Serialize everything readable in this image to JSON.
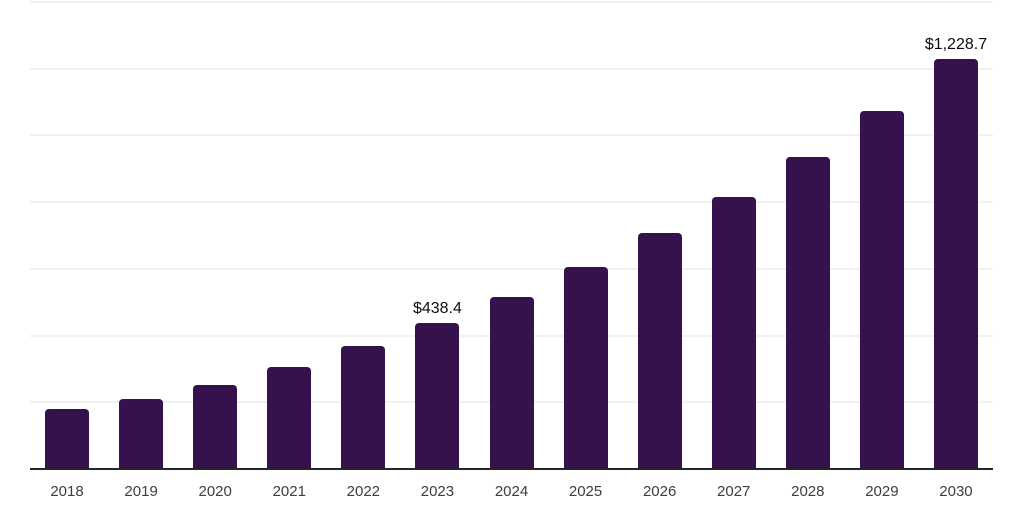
{
  "chart_data": {
    "type": "bar",
    "title": "",
    "xlabel": "",
    "ylabel": "",
    "categories": [
      "2018",
      "2019",
      "2020",
      "2021",
      "2022",
      "2023",
      "2024",
      "2025",
      "2026",
      "2027",
      "2028",
      "2029",
      "2030"
    ],
    "values": [
      180,
      210,
      252,
      306,
      369,
      438.4,
      516,
      606,
      708,
      815,
      935,
      1073,
      1228.7
    ],
    "annotations": [
      {
        "category": "2023",
        "label": "$438.4"
      },
      {
        "category": "2030",
        "label": "$1,228.7"
      }
    ],
    "ylim": [
      0,
      1400
    ],
    "gridline_step": 200,
    "grid": "horizontal-only",
    "legend": "none",
    "y_axis_labels_visible": false,
    "bar_color": "#35124e",
    "axis_line_color": "#262626",
    "gridline_color": "#f1f1f1",
    "tick_label_color": "#3d3d3d",
    "data_label_color": "#0d0d0d"
  }
}
